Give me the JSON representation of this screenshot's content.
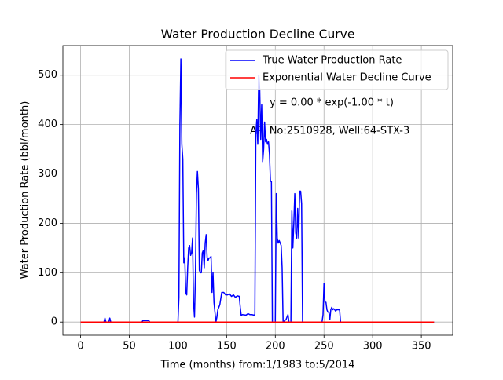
{
  "chart_data": {
    "type": "line",
    "title": "Water Production Decline Curve",
    "xlabel": "Time (months) from:1/1983 to:5/2014",
    "ylabel": "Water Production Rate (bbl/month)",
    "annotations": [
      "y = 0.00 * exp(-1.00 * t)",
      "API No:2510928, Well:64-STX-3"
    ],
    "xlim": [
      -18.2,
      382.2
    ],
    "ylim": [
      -26.7,
      560
    ],
    "xticks": [
      0,
      50,
      100,
      150,
      200,
      250,
      300,
      350
    ],
    "yticks": [
      0,
      100,
      200,
      300,
      400,
      500
    ],
    "grid": true,
    "legend": "upper right",
    "series": [
      {
        "name": "True Water Production Rate",
        "color": "#0000ff",
        "x": [
          0,
          24,
          25,
          26,
          29,
          30,
          31,
          63,
          64,
          70,
          71,
          100,
          101,
          102,
          103,
          104,
          105,
          106,
          107,
          108,
          109,
          110,
          111,
          112,
          113,
          114,
          115,
          116,
          117,
          118,
          119,
          120,
          121,
          122,
          123,
          124,
          125,
          126,
          127,
          128,
          129,
          130,
          131,
          132,
          133,
          134,
          135,
          136,
          137,
          138,
          139,
          140,
          141,
          142,
          143,
          145,
          147,
          149,
          151,
          153,
          155,
          157,
          159,
          161,
          163,
          164,
          165,
          166,
          170,
          172,
          174,
          176,
          178,
          179,
          180,
          181,
          182,
          183,
          184,
          185,
          186,
          187,
          188,
          189,
          190,
          191,
          192,
          193,
          194,
          195,
          196,
          197,
          200,
          201,
          202,
          203,
          204,
          205,
          206,
          207,
          208,
          211,
          212,
          213,
          214,
          216,
          217,
          218,
          219,
          220,
          221,
          222,
          223,
          224,
          225,
          226,
          227,
          228,
          248,
          249,
          250,
          251,
          252,
          253,
          254,
          255,
          256,
          257,
          258,
          259,
          260,
          261,
          262,
          263,
          264,
          265,
          266,
          267,
          363
        ],
        "values": [
          0,
          0,
          8,
          0,
          0,
          8,
          0,
          0,
          3,
          3,
          0,
          0,
          50,
          400,
          533,
          360,
          330,
          120,
          130,
          60,
          55,
          110,
          150,
          155,
          135,
          140,
          170,
          40,
          10,
          100,
          260,
          305,
          270,
          105,
          100,
          100,
          140,
          145,
          110,
          160,
          177,
          130,
          125,
          130,
          130,
          133,
          60,
          100,
          40,
          20,
          0,
          10,
          25,
          30,
          35,
          60,
          60,
          55,
          55,
          57,
          52,
          55,
          50,
          53,
          52,
          30,
          13,
          15,
          14,
          17,
          15,
          15,
          14,
          15,
          380,
          410,
          360,
          500,
          470,
          370,
          440,
          325,
          350,
          405,
          365,
          370,
          360,
          365,
          340,
          285,
          285,
          0,
          0,
          260,
          170,
          160,
          165,
          160,
          155,
          110,
          0,
          5,
          10,
          15,
          0,
          0,
          225,
          150,
          200,
          260,
          180,
          170,
          230,
          170,
          265,
          265,
          240,
          0,
          0,
          15,
          78,
          40,
          40,
          25,
          20,
          20,
          5,
          25,
          30,
          25,
          27,
          25,
          22,
          25,
          25,
          25,
          25,
          0,
          0
        ]
      },
      {
        "name": "Exponential Water Decline Curve",
        "color": "#ff0000",
        "x": [
          0,
          363
        ],
        "values": [
          0,
          0
        ]
      }
    ]
  }
}
